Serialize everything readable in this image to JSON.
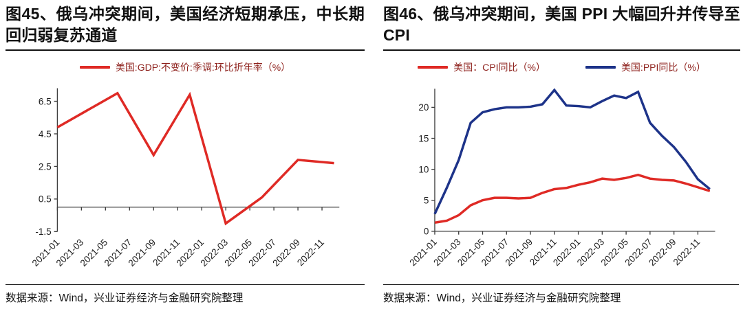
{
  "page": {
    "background": "#ffffff"
  },
  "colors": {
    "red_line": "#df2a25",
    "blue_line": "#1d3389",
    "legend_text": "#8e211c",
    "axis": "#3f3f3f",
    "title_text": "#111111"
  },
  "panels": [
    {
      "title": "图45、俄乌冲突期间，美国经济短期承压，中长期回归弱复苏通道",
      "source_note": "数据来源：Wind，兴业证券经济与金融研究院整理"
    },
    {
      "title": "图46、俄乌冲突期间，美国 PPI 大幅回升并传导至 CPI",
      "source_note": "数据来源：Wind，兴业证券经济与金融研究院整理"
    }
  ],
  "chart_data": [
    {
      "type": "line",
      "title": "图45、俄乌冲突期间，美国经济短期承压，中长期回归弱复苏通道",
      "xlabel": "",
      "ylabel": "",
      "ylim": [
        -1.5,
        7.3
      ],
      "yticks": [
        6.5,
        4.5,
        2.5,
        0.5,
        -1.5
      ],
      "grid": false,
      "legend_position": "top-center",
      "x_months": [
        "2021-01",
        "2021-02",
        "2021-03",
        "2021-04",
        "2021-05",
        "2021-06",
        "2021-07",
        "2021-08",
        "2021-09",
        "2021-10",
        "2021-11",
        "2021-12",
        "2022-01",
        "2022-02",
        "2022-03",
        "2022-04",
        "2022-05",
        "2022-06",
        "2022-07",
        "2022-08",
        "2022-09",
        "2022-10",
        "2022-11",
        "2022-12"
      ],
      "x_tick_labels": [
        "2021-01",
        "2021-03",
        "2021-05",
        "2021-07",
        "2021-09",
        "2021-11",
        "2022-01",
        "2022-03",
        "2022-05",
        "2022-07",
        "2022-09",
        "2022-11"
      ],
      "series": [
        {
          "name": "美国:GDP:不变价:季调:环比折年率（%）",
          "color": "#df2a25",
          "points": [
            [
              "2021-01",
              4.9
            ],
            [
              "2021-06",
              7.0
            ],
            [
              "2021-09",
              3.2
            ],
            [
              "2021-12",
              6.9
            ],
            [
              "2022-03",
              -1.0
            ],
            [
              "2022-06",
              0.6
            ],
            [
              "2022-09",
              2.9
            ],
            [
              "2022-12",
              2.7
            ]
          ]
        }
      ]
    },
    {
      "type": "line",
      "title": "图46、俄乌冲突期间，美国 PPI 大幅回升并传导至 CPI",
      "xlabel": "",
      "ylabel": "",
      "ylim": [
        0,
        23
      ],
      "yticks": [
        0,
        5,
        10,
        15,
        20
      ],
      "grid": false,
      "legend_position": "top-center",
      "x_months": [
        "2021-01",
        "2021-02",
        "2021-03",
        "2021-04",
        "2021-05",
        "2021-06",
        "2021-07",
        "2021-08",
        "2021-09",
        "2021-10",
        "2021-11",
        "2021-12",
        "2022-01",
        "2022-02",
        "2022-03",
        "2022-04",
        "2022-05",
        "2022-06",
        "2022-07",
        "2022-08",
        "2022-09",
        "2022-10",
        "2022-11",
        "2022-12"
      ],
      "x_tick_labels": [
        "2021-01",
        "2021-03",
        "2021-05",
        "2021-07",
        "2021-09",
        "2021-11",
        "2022-01",
        "2022-03",
        "2022-05",
        "2022-07",
        "2022-09",
        "2022-11"
      ],
      "series": [
        {
          "name": "美国：CPI同比（%）",
          "color": "#df2a25",
          "values": [
            1.4,
            1.7,
            2.6,
            4.2,
            5.0,
            5.4,
            5.4,
            5.3,
            5.4,
            6.2,
            6.8,
            7.0,
            7.5,
            7.9,
            8.5,
            8.3,
            8.6,
            9.1,
            8.5,
            8.3,
            8.2,
            7.7,
            7.1,
            6.5
          ]
        },
        {
          "name": "美国:PPI同比（%）",
          "color": "#1d3389",
          "values": [
            2.8,
            7.0,
            11.5,
            17.5,
            19.2,
            19.7,
            20.0,
            20.0,
            20.1,
            20.5,
            22.8,
            20.3,
            20.2,
            20.0,
            21.0,
            21.9,
            21.5,
            22.5,
            17.5,
            15.4,
            13.6,
            11.2,
            8.4,
            6.8
          ]
        }
      ]
    }
  ]
}
